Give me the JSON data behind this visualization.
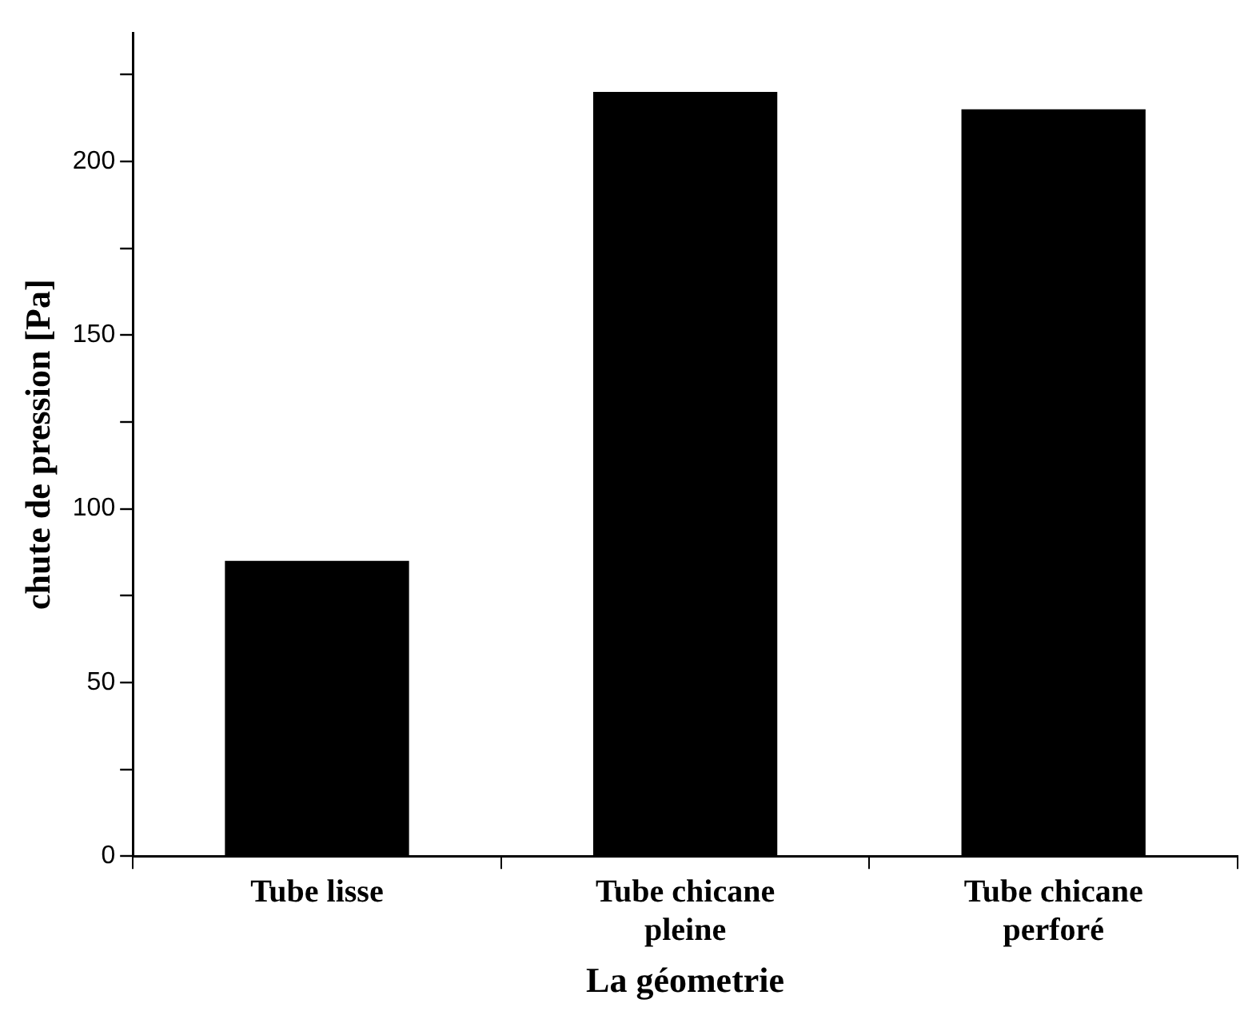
{
  "chart_data": {
    "type": "bar",
    "xlabel": "La géometrie",
    "ylabel": "chute de pression [Pa]",
    "categories": [
      "Tube lisse",
      "Tube chicane pleine",
      "Tube chicane perforé"
    ],
    "values": [
      85,
      220,
      215
    ],
    "color": "#000000",
    "ylim": [
      0,
      237
    ],
    "yticks": [
      0,
      {
        "value": 25,
        "label": null
      },
      50,
      {
        "value": 75,
        "label": null
      },
      100,
      {
        "value": 125,
        "label": null
      },
      150,
      {
        "value": 175,
        "label": null
      },
      200,
      {
        "value": 225,
        "label": null
      }
    ],
    "grid": false,
    "legend": false
  }
}
